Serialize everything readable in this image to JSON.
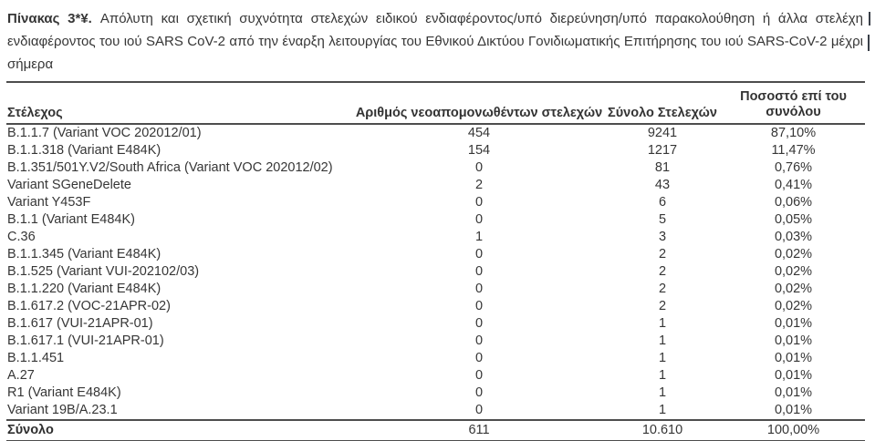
{
  "page": {
    "background": "#ffffff",
    "text_color": "#363636",
    "rule_color": "#4d4d4d"
  },
  "caption": {
    "label": "Πίνακας 3*¥.",
    "line1": "Απόλυτη και σχετική συχνότητα στελεχών ειδικού ενδιαφέροντος/υπό διερεύνηση/υπό παρακολούθηση ή άλλα στελέχη",
    "line2": "ενδιαφέροντος του ιού SARS CoV-2 από την έναρξη λειτουργίας του Εθνικού Δικτύου Γονιδιωματικής Επιτήρησης του ιού SARS-CoV-2 μέχρι",
    "line3": "σήμερα"
  },
  "table": {
    "columns": {
      "strain": "Στέλεχος",
      "new_isolates": "Αριθμός νεοαπομονωθέντων στελεχών",
      "total_strains": "Σύνολο Στελεχών",
      "percent": "Ποσοστό επί του\nσυνόλου"
    },
    "rows": [
      {
        "strain": "B.1.1.7 (Variant VOC 202012/01)",
        "new_isolates": "454",
        "total_strains": "9241",
        "percent": "87,10%"
      },
      {
        "strain": "B.1.1.318 (Variant E484K)",
        "new_isolates": "154",
        "total_strains": "1217",
        "percent": "11,47%"
      },
      {
        "strain": "B.1.351/501Y.V2/South Africa (Variant VOC 202012/02)",
        "new_isolates": "0",
        "total_strains": "81",
        "percent": "0,76%"
      },
      {
        "strain": "Variant SGeneDelete",
        "new_isolates": "2",
        "total_strains": "43",
        "percent": "0,41%"
      },
      {
        "strain": "Variant Y453F",
        "new_isolates": "0",
        "total_strains": "6",
        "percent": "0,06%"
      },
      {
        "strain": "B.1.1 (Variant E484K)",
        "new_isolates": "0",
        "total_strains": "5",
        "percent": "0,05%"
      },
      {
        "strain": "C.36",
        "new_isolates": "1",
        "total_strains": "3",
        "percent": "0,03%"
      },
      {
        "strain": "B.1.1.345 (Variant E484K)",
        "new_isolates": "0",
        "total_strains": "2",
        "percent": "0,02%"
      },
      {
        "strain": "B.1.525 (Variant VUI-202102/03)",
        "new_isolates": "0",
        "total_strains": "2",
        "percent": "0,02%"
      },
      {
        "strain": "B.1.1.220 (Variant E484K)",
        "new_isolates": "0",
        "total_strains": "2",
        "percent": "0,02%"
      },
      {
        "strain": "B.1.617.2 (VOC-21APR-02)",
        "new_isolates": "0",
        "total_strains": "2",
        "percent": "0,02%"
      },
      {
        "strain": "B.1.617 (VUI-21APR-01)",
        "new_isolates": "0",
        "total_strains": "1",
        "percent": "0,01%"
      },
      {
        "strain": "B.1.617.1 (VUI-21APR-01)",
        "new_isolates": "0",
        "total_strains": "1",
        "percent": "0,01%"
      },
      {
        "strain": "B.1.1.451",
        "new_isolates": "0",
        "total_strains": "1",
        "percent": "0,01%"
      },
      {
        "strain": "A.27",
        "new_isolates": "0",
        "total_strains": "1",
        "percent": "0,01%"
      },
      {
        "strain": "R1 (Variant E484K)",
        "new_isolates": "0",
        "total_strains": "1",
        "percent": "0,01%"
      },
      {
        "strain": "Variant 19B/A.23.1",
        "new_isolates": "0",
        "total_strains": "1",
        "percent": "0,01%"
      }
    ],
    "total": {
      "label": "Σύνολο",
      "new_isolates": "611",
      "total_strains": "10.610",
      "percent": "100,00%"
    }
  }
}
